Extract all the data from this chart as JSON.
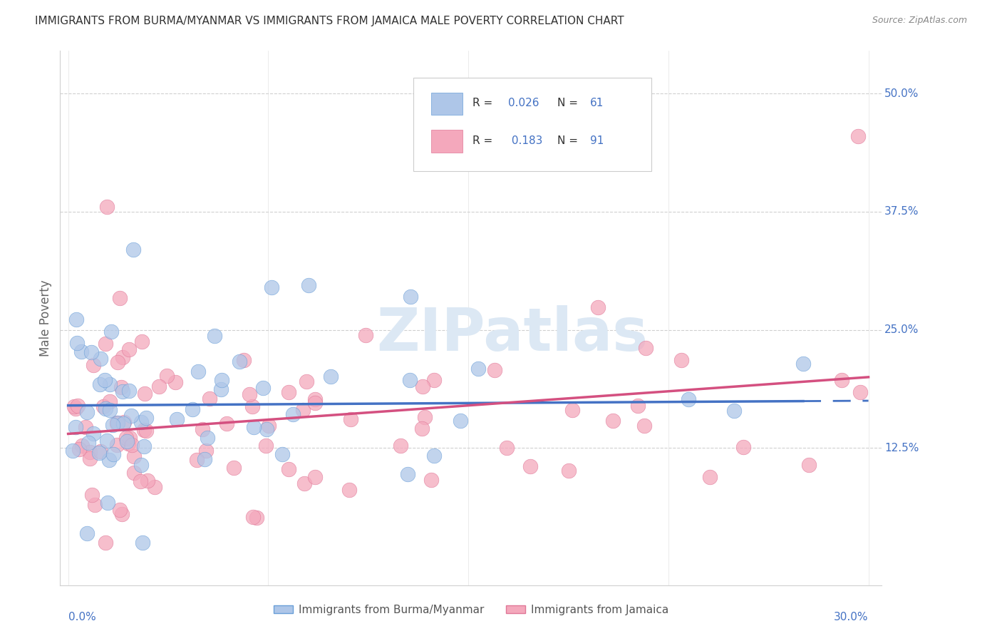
{
  "title": "IMMIGRANTS FROM BURMA/MYANMAR VS IMMIGRANTS FROM JAMAICA MALE POVERTY CORRELATION CHART",
  "source": "Source: ZipAtlas.com",
  "ylabel": "Male Poverty",
  "ytick_labels": [
    "12.5%",
    "25.0%",
    "37.5%",
    "50.0%"
  ],
  "ytick_values": [
    0.125,
    0.25,
    0.375,
    0.5
  ],
  "color_burma": "#aec6e8",
  "color_burma_edge": "#6a9fd8",
  "color_jamaica": "#f4a8bc",
  "color_jamaica_edge": "#e07898",
  "color_burma_line": "#4472c4",
  "color_jamaica_line": "#d45080",
  "color_axis_label": "#4472c4",
  "color_grid": "#d0d0d0",
  "color_legend_text": "#333333",
  "watermark_color": "#dce8f4",
  "legend_R1": "0.026",
  "legend_N1": "61",
  "legend_R2": "0.183",
  "legend_N2": "91"
}
